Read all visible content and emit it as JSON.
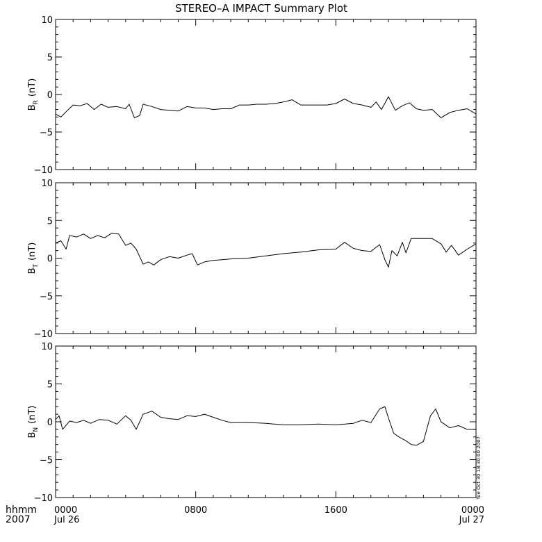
{
  "chart_data": {
    "type": "line",
    "title": "STEREO–A IMPACT Summary Plot",
    "timestamp": "Tue Oct 30 18:30:00 2007",
    "x_axis": {
      "unit_label": "hhmm",
      "year_label": "2007",
      "range_hours": [
        0,
        24
      ],
      "ticks": [
        {
          "hour": 0,
          "label": "0000",
          "date": "Jul 26"
        },
        {
          "hour": 8,
          "label": "0800",
          "date": ""
        },
        {
          "hour": 16,
          "label": "1600",
          "date": ""
        },
        {
          "hour": 24,
          "label": "0000",
          "date": "Jul 27"
        }
      ]
    },
    "panels": [
      {
        "name": "BR",
        "ylabel_main": "B",
        "ylabel_sub": "R",
        "ylabel_unit": "(nT)",
        "ylim": [
          -10,
          10
        ],
        "yticks": [
          10,
          5,
          0,
          -5,
          -10
        ],
        "points": [
          [
            0,
            -2.6
          ],
          [
            0.3,
            -3.0
          ],
          [
            0.6,
            -2.3
          ],
          [
            1.0,
            -1.4
          ],
          [
            1.4,
            -1.5
          ],
          [
            1.8,
            -1.2
          ],
          [
            2.2,
            -2.0
          ],
          [
            2.6,
            -1.3
          ],
          [
            3.0,
            -1.7
          ],
          [
            3.5,
            -1.6
          ],
          [
            4.0,
            -1.9
          ],
          [
            4.2,
            -1.3
          ],
          [
            4.5,
            -3.1
          ],
          [
            4.8,
            -2.8
          ],
          [
            5.0,
            -1.3
          ],
          [
            5.5,
            -1.6
          ],
          [
            6.0,
            -2.0
          ],
          [
            6.5,
            -2.1
          ],
          [
            7.0,
            -2.2
          ],
          [
            7.5,
            -1.6
          ],
          [
            8.0,
            -1.8
          ],
          [
            8.5,
            -1.8
          ],
          [
            9.0,
            -2.0
          ],
          [
            9.5,
            -1.9
          ],
          [
            10.0,
            -1.9
          ],
          [
            10.5,
            -1.4
          ],
          [
            11.0,
            -1.4
          ],
          [
            11.5,
            -1.3
          ],
          [
            12.0,
            -1.3
          ],
          [
            12.5,
            -1.2
          ],
          [
            13.0,
            -1.0
          ],
          [
            13.5,
            -0.7
          ],
          [
            14.0,
            -1.4
          ],
          [
            14.5,
            -1.4
          ],
          [
            15.0,
            -1.4
          ],
          [
            15.5,
            -1.4
          ],
          [
            16.0,
            -1.2
          ],
          [
            16.5,
            -0.6
          ],
          [
            17.0,
            -1.2
          ],
          [
            17.5,
            -1.4
          ],
          [
            18.0,
            -1.7
          ],
          [
            18.3,
            -1.0
          ],
          [
            18.6,
            -2.0
          ],
          [
            19.0,
            -0.3
          ],
          [
            19.4,
            -2.1
          ],
          [
            19.8,
            -1.5
          ],
          [
            20.2,
            -1.1
          ],
          [
            20.6,
            -1.9
          ],
          [
            21.0,
            -2.1
          ],
          [
            21.5,
            -2.0
          ],
          [
            22.0,
            -3.1
          ],
          [
            22.5,
            -2.4
          ],
          [
            23.0,
            -2.1
          ],
          [
            23.5,
            -1.9
          ],
          [
            24.0,
            -2.6
          ]
        ]
      },
      {
        "name": "BT",
        "ylabel_main": "B",
        "ylabel_sub": "T",
        "ylabel_unit": "(nT)",
        "ylim": [
          -10,
          10
        ],
        "yticks": [
          10,
          5,
          0,
          -5,
          -10
        ],
        "points": [
          [
            0,
            2.0
          ],
          [
            0.3,
            2.3
          ],
          [
            0.6,
            1.2
          ],
          [
            0.8,
            3.0
          ],
          [
            1.2,
            2.8
          ],
          [
            1.6,
            3.2
          ],
          [
            2.0,
            2.6
          ],
          [
            2.4,
            3.0
          ],
          [
            2.8,
            2.7
          ],
          [
            3.2,
            3.3
          ],
          [
            3.6,
            3.2
          ],
          [
            4.0,
            1.7
          ],
          [
            4.3,
            2.0
          ],
          [
            4.6,
            1.2
          ],
          [
            5.0,
            -0.8
          ],
          [
            5.3,
            -0.5
          ],
          [
            5.6,
            -0.9
          ],
          [
            6.0,
            -0.2
          ],
          [
            6.5,
            0.2
          ],
          [
            7.0,
            0.0
          ],
          [
            7.5,
            0.4
          ],
          [
            7.8,
            0.6
          ],
          [
            8.1,
            -0.9
          ],
          [
            8.5,
            -0.5
          ],
          [
            9.0,
            -0.3
          ],
          [
            9.5,
            -0.2
          ],
          [
            10.0,
            -0.1
          ],
          [
            11.0,
            0.0
          ],
          [
            12.0,
            0.3
          ],
          [
            13.0,
            0.6
          ],
          [
            14.0,
            0.8
          ],
          [
            15.0,
            1.1
          ],
          [
            16.0,
            1.2
          ],
          [
            16.5,
            2.1
          ],
          [
            17.0,
            1.3
          ],
          [
            17.5,
            1.0
          ],
          [
            18.0,
            0.9
          ],
          [
            18.5,
            1.8
          ],
          [
            18.8,
            -0.2
          ],
          [
            19.0,
            -1.2
          ],
          [
            19.2,
            1.0
          ],
          [
            19.5,
            0.3
          ],
          [
            19.8,
            2.1
          ],
          [
            20.0,
            0.7
          ],
          [
            20.3,
            2.6
          ],
          [
            21.0,
            2.6
          ],
          [
            21.5,
            2.6
          ],
          [
            22.0,
            1.9
          ],
          [
            22.3,
            0.8
          ],
          [
            22.6,
            1.7
          ],
          [
            23.0,
            0.4
          ],
          [
            23.5,
            1.2
          ],
          [
            24.0,
            1.9
          ]
        ]
      },
      {
        "name": "BN",
        "ylabel_main": "B",
        "ylabel_sub": "N",
        "ylabel_unit": "(nT)",
        "ylim": [
          -10,
          10
        ],
        "yticks": [
          10,
          5,
          0,
          -5,
          -10
        ],
        "points": [
          [
            0,
            0.3
          ],
          [
            0.2,
            0.8
          ],
          [
            0.4,
            -1.0
          ],
          [
            0.8,
            0.1
          ],
          [
            1.2,
            -0.1
          ],
          [
            1.6,
            0.2
          ],
          [
            2.0,
            -0.2
          ],
          [
            2.5,
            0.3
          ],
          [
            3.0,
            0.2
          ],
          [
            3.5,
            -0.3
          ],
          [
            4.0,
            0.8
          ],
          [
            4.3,
            0.2
          ],
          [
            4.6,
            -1.0
          ],
          [
            5.0,
            1.0
          ],
          [
            5.5,
            1.4
          ],
          [
            6.0,
            0.6
          ],
          [
            6.5,
            0.4
          ],
          [
            7.0,
            0.3
          ],
          [
            7.5,
            0.8
          ],
          [
            8.0,
            0.7
          ],
          [
            8.5,
            1.0
          ],
          [
            9.0,
            0.6
          ],
          [
            9.5,
            0.2
          ],
          [
            10.0,
            -0.1
          ],
          [
            11.0,
            -0.1
          ],
          [
            12.0,
            -0.2
          ],
          [
            13.0,
            -0.4
          ],
          [
            14.0,
            -0.4
          ],
          [
            15.0,
            -0.3
          ],
          [
            16.0,
            -0.4
          ],
          [
            17.0,
            -0.2
          ],
          [
            17.5,
            0.2
          ],
          [
            18.0,
            -0.1
          ],
          [
            18.5,
            1.7
          ],
          [
            18.8,
            2.0
          ],
          [
            19.0,
            0.5
          ],
          [
            19.3,
            -1.5
          ],
          [
            19.6,
            -2.0
          ],
          [
            20.0,
            -2.5
          ],
          [
            20.3,
            -3.0
          ],
          [
            20.6,
            -3.1
          ],
          [
            21.0,
            -2.6
          ],
          [
            21.4,
            0.8
          ],
          [
            21.7,
            1.7
          ],
          [
            22.0,
            0.0
          ],
          [
            22.5,
            -0.8
          ],
          [
            23.0,
            -0.5
          ],
          [
            23.5,
            -1.0
          ],
          [
            24.0,
            -1.0
          ]
        ]
      }
    ]
  }
}
